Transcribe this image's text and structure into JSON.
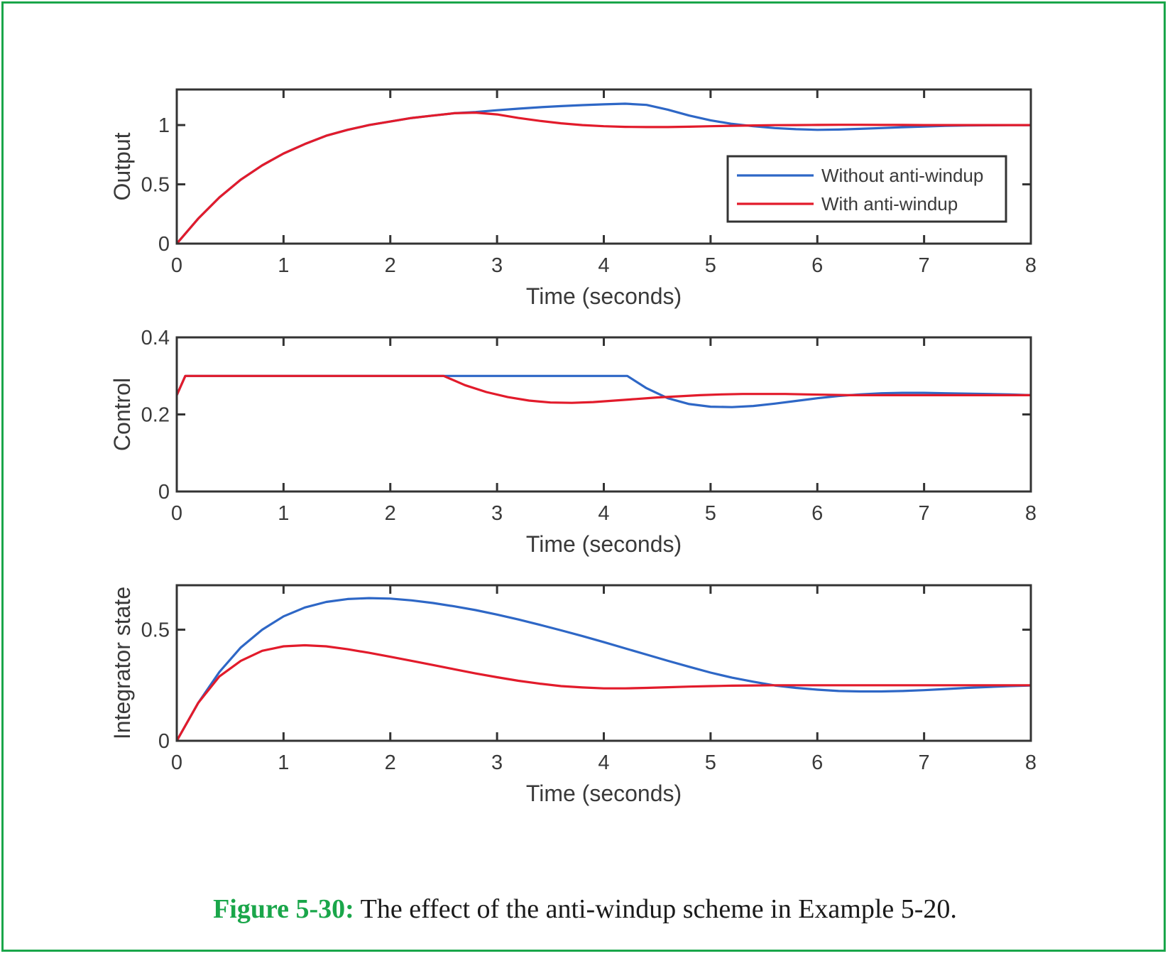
{
  "caption": {
    "label": "Figure 5-30:",
    "text": " The effect of the anti-windup scheme in Example 5-20."
  },
  "colors": {
    "frame": "#1aa64a",
    "without": "#2e67c6",
    "with": "#e21b2b",
    "axis": "#333333"
  },
  "chart_data": [
    {
      "type": "line",
      "ylabel": "Output",
      "xlabel": "Time (seconds)",
      "xlim": [
        0,
        8
      ],
      "ylim": [
        0,
        1.3
      ],
      "xticks": [
        0,
        1,
        2,
        3,
        4,
        5,
        6,
        7,
        8
      ],
      "yticks": [
        0,
        0.5,
        1
      ],
      "ytick_labels": [
        "0",
        "0.5",
        "1"
      ],
      "legend_position": "right",
      "series": [
        {
          "name": "Without anti-windup",
          "color": "#2e67c6",
          "x": [
            0,
            0.2,
            0.4,
            0.6,
            0.8,
            1.0,
            1.2,
            1.4,
            1.6,
            1.8,
            2.0,
            2.2,
            2.4,
            2.6,
            2.8,
            3.0,
            3.2,
            3.4,
            3.6,
            3.8,
            4.0,
            4.2,
            4.4,
            4.6,
            4.8,
            5.0,
            5.2,
            5.4,
            5.6,
            5.8,
            6.0,
            6.2,
            6.4,
            6.6,
            6.8,
            7.0,
            7.2,
            7.4,
            7.6,
            7.8,
            8.0
          ],
          "y": [
            0,
            0.21,
            0.39,
            0.54,
            0.66,
            0.76,
            0.84,
            0.91,
            0.96,
            1.0,
            1.03,
            1.06,
            1.08,
            1.1,
            1.11,
            1.125,
            1.138,
            1.15,
            1.16,
            1.168,
            1.175,
            1.18,
            1.17,
            1.13,
            1.08,
            1.04,
            1.01,
            0.99,
            0.975,
            0.965,
            0.96,
            0.962,
            0.968,
            0.975,
            0.982,
            0.988,
            0.993,
            0.996,
            0.998,
            0.999,
            1.0
          ]
        },
        {
          "name": "With anti-windup",
          "color": "#e21b2b",
          "x": [
            0,
            0.2,
            0.4,
            0.6,
            0.8,
            1.0,
            1.2,
            1.4,
            1.6,
            1.8,
            2.0,
            2.2,
            2.4,
            2.6,
            2.8,
            3.0,
            3.2,
            3.4,
            3.6,
            3.8,
            4.0,
            4.2,
            4.4,
            4.6,
            4.8,
            5.0,
            5.2,
            5.4,
            5.6,
            5.8,
            6.0,
            6.2,
            6.4,
            6.6,
            6.8,
            7.0,
            7.2,
            7.4,
            7.6,
            7.8,
            8.0
          ],
          "y": [
            0,
            0.21,
            0.39,
            0.54,
            0.66,
            0.76,
            0.84,
            0.91,
            0.96,
            1.0,
            1.03,
            1.06,
            1.08,
            1.1,
            1.105,
            1.09,
            1.06,
            1.035,
            1.015,
            1.0,
            0.99,
            0.985,
            0.983,
            0.983,
            0.986,
            0.99,
            0.994,
            0.997,
            0.999,
            1.0,
            1.001,
            1.002,
            1.002,
            1.001,
            1.001,
            1.0,
            1.0,
            1.0,
            1.0,
            1.0,
            1.0
          ]
        }
      ]
    },
    {
      "type": "line",
      "ylabel": "Control",
      "xlabel": "Time (seconds)",
      "xlim": [
        0,
        8
      ],
      "ylim": [
        0,
        0.4
      ],
      "xticks": [
        0,
        1,
        2,
        3,
        4,
        5,
        6,
        7,
        8
      ],
      "yticks": [
        0,
        0.2,
        0.4
      ],
      "ytick_labels": [
        "0",
        "0.2",
        "0.4"
      ],
      "series": [
        {
          "name": "Without anti-windup",
          "color": "#2e67c6",
          "x": [
            0,
            0.08,
            1.0,
            2.0,
            3.0,
            4.0,
            4.22,
            4.4,
            4.6,
            4.8,
            5.0,
            5.2,
            5.4,
            5.6,
            5.8,
            6.0,
            6.2,
            6.4,
            6.6,
            6.8,
            7.0,
            7.2,
            7.4,
            7.6,
            7.8,
            8.0
          ],
          "y": [
            0.25,
            0.3,
            0.3,
            0.3,
            0.3,
            0.3,
            0.3,
            0.268,
            0.242,
            0.227,
            0.22,
            0.219,
            0.222,
            0.228,
            0.235,
            0.242,
            0.248,
            0.252,
            0.255,
            0.256,
            0.256,
            0.255,
            0.254,
            0.253,
            0.252,
            0.25
          ]
        },
        {
          "name": "With anti-windup",
          "color": "#e21b2b",
          "x": [
            0,
            0.08,
            1.0,
            2.0,
            2.5,
            2.7,
            2.9,
            3.1,
            3.3,
            3.5,
            3.7,
            3.9,
            4.1,
            4.3,
            4.5,
            4.7,
            4.9,
            5.1,
            5.3,
            5.5,
            5.7,
            5.9,
            6.1,
            6.3,
            6.5,
            6.7,
            6.9,
            7.1,
            7.3,
            7.5,
            7.7,
            7.9,
            8.0
          ],
          "y": [
            0.25,
            0.3,
            0.3,
            0.3,
            0.3,
            0.276,
            0.258,
            0.245,
            0.236,
            0.231,
            0.23,
            0.232,
            0.236,
            0.24,
            0.244,
            0.247,
            0.25,
            0.252,
            0.253,
            0.253,
            0.253,
            0.252,
            0.251,
            0.25,
            0.25,
            0.25,
            0.25,
            0.25,
            0.25,
            0.25,
            0.25,
            0.25,
            0.25
          ]
        }
      ]
    },
    {
      "type": "line",
      "ylabel": "Integrator state",
      "xlabel": "Time (seconds)",
      "xlim": [
        0,
        8
      ],
      "ylim": [
        0,
        0.7
      ],
      "xticks": [
        0,
        1,
        2,
        3,
        4,
        5,
        6,
        7,
        8
      ],
      "yticks": [
        0,
        0.5
      ],
      "ytick_labels": [
        "0",
        "0.5"
      ],
      "series": [
        {
          "name": "Without anti-windup",
          "color": "#2e67c6",
          "x": [
            0,
            0.2,
            0.4,
            0.6,
            0.8,
            1.0,
            1.2,
            1.4,
            1.6,
            1.8,
            2.0,
            2.2,
            2.4,
            2.6,
            2.8,
            3.0,
            3.2,
            3.4,
            3.6,
            3.8,
            4.0,
            4.2,
            4.4,
            4.6,
            4.8,
            5.0,
            5.2,
            5.4,
            5.6,
            5.8,
            6.0,
            6.2,
            6.4,
            6.6,
            6.8,
            7.0,
            7.2,
            7.4,
            7.6,
            7.8,
            8.0
          ],
          "y": [
            0,
            0.17,
            0.31,
            0.42,
            0.5,
            0.56,
            0.6,
            0.625,
            0.638,
            0.642,
            0.64,
            0.632,
            0.62,
            0.605,
            0.588,
            0.568,
            0.546,
            0.522,
            0.497,
            0.471,
            0.444,
            0.416,
            0.388,
            0.36,
            0.333,
            0.307,
            0.284,
            0.266,
            0.249,
            0.238,
            0.23,
            0.224,
            0.222,
            0.222,
            0.224,
            0.228,
            0.233,
            0.238,
            0.242,
            0.246,
            0.249
          ]
        },
        {
          "name": "With anti-windup",
          "color": "#e21b2b",
          "x": [
            0,
            0.2,
            0.4,
            0.6,
            0.8,
            1.0,
            1.2,
            1.4,
            1.6,
            1.8,
            2.0,
            2.2,
            2.4,
            2.6,
            2.8,
            3.0,
            3.2,
            3.4,
            3.6,
            3.8,
            4.0,
            4.2,
            4.4,
            4.6,
            4.8,
            5.0,
            5.2,
            5.4,
            5.6,
            5.8,
            6.0,
            6.2,
            6.4,
            6.6,
            6.8,
            7.0,
            7.2,
            7.4,
            7.6,
            7.8,
            8.0
          ],
          "y": [
            0,
            0.17,
            0.29,
            0.36,
            0.405,
            0.425,
            0.43,
            0.425,
            0.412,
            0.396,
            0.378,
            0.36,
            0.341,
            0.322,
            0.303,
            0.286,
            0.27,
            0.257,
            0.246,
            0.24,
            0.236,
            0.236,
            0.238,
            0.241,
            0.244,
            0.246,
            0.248,
            0.249,
            0.25,
            0.25,
            0.25,
            0.25,
            0.25,
            0.25,
            0.25,
            0.25,
            0.25,
            0.25,
            0.25,
            0.25,
            0.25
          ]
        }
      ]
    }
  ]
}
